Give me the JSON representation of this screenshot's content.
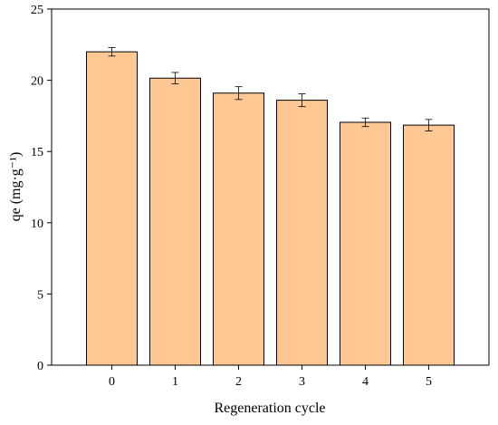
{
  "chart_data": {
    "type": "bar",
    "categories": [
      "0",
      "1",
      "2",
      "3",
      "4",
      "5"
    ],
    "values": [
      22.0,
      20.15,
      19.1,
      18.6,
      17.05,
      16.85
    ],
    "errors": [
      0.3,
      0.4,
      0.45,
      0.45,
      0.3,
      0.4
    ],
    "title": "",
    "xlabel": "Regeneration cycle",
    "ylabel": "qe (mg·g⁻¹)",
    "ylim": [
      0,
      25
    ],
    "yticks": [
      0,
      5,
      10,
      15,
      20,
      25
    ],
    "grid": false,
    "legend": "none",
    "colors": {
      "bar_fill": "#FEC794",
      "bar_stroke": "#000000",
      "error_bar": "#000000",
      "axis": "#000000"
    }
  }
}
